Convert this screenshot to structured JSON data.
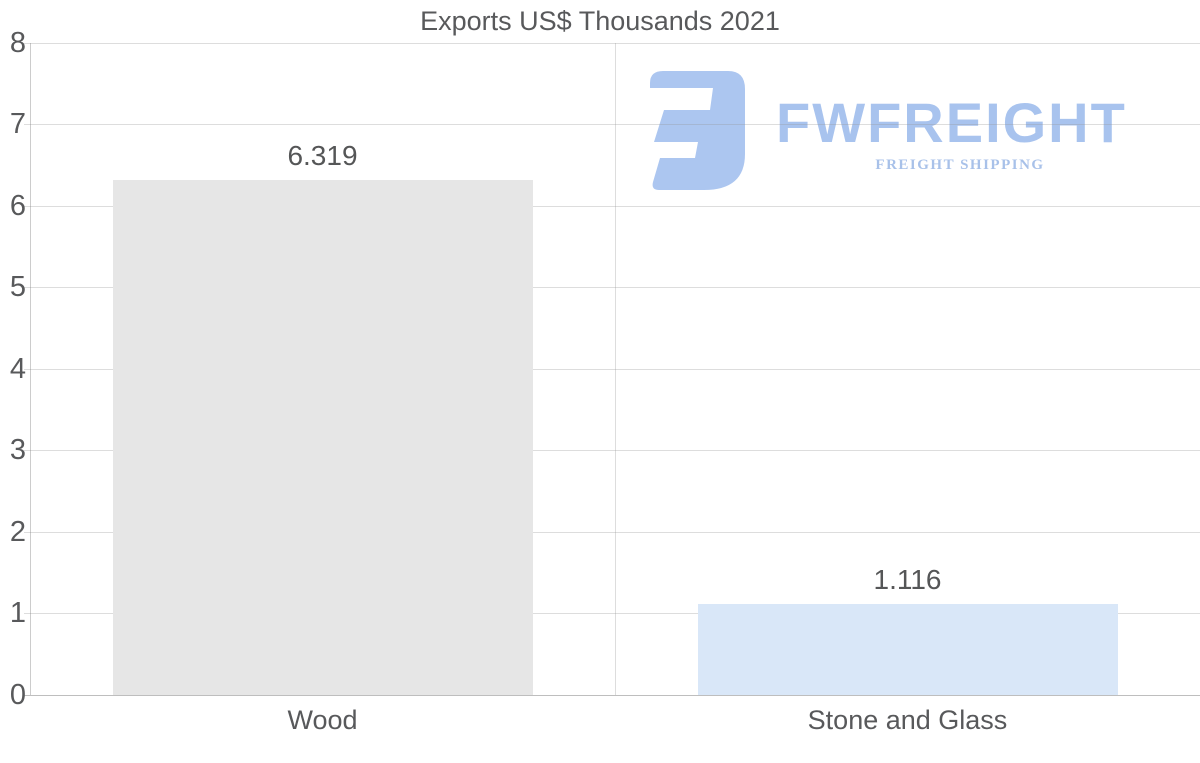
{
  "chart_data": {
    "type": "bar",
    "title": "Exports US$ Thousands 2021",
    "categories": [
      "Wood",
      "Stone and Glass"
    ],
    "values": [
      6.319,
      1.116
    ],
    "value_labels": [
      "6.319",
      "1.116"
    ],
    "bar_colors": [
      "#e6e6e6",
      "#d9e7f8"
    ],
    "xlabel": "",
    "ylabel": "",
    "ylim": [
      0,
      8
    ],
    "yticks": [
      0,
      1,
      2,
      3,
      4,
      5,
      6,
      7,
      8
    ],
    "grid": "horizontal gridlines at each integer, vertical divider between category slots",
    "legend": "none"
  },
  "watermark": {
    "brand": "FWFREIGHT",
    "tagline": "FREIGHT SHIPPING",
    "logo_color": "#a9c4f0",
    "icon": "fwfreight-logo-mark"
  },
  "colors": {
    "title_text": "#58595b",
    "axis_text": "#58595b",
    "gridline": "#e3e3e3",
    "axis_line": "#c3c3c3",
    "background": "#ffffff"
  }
}
